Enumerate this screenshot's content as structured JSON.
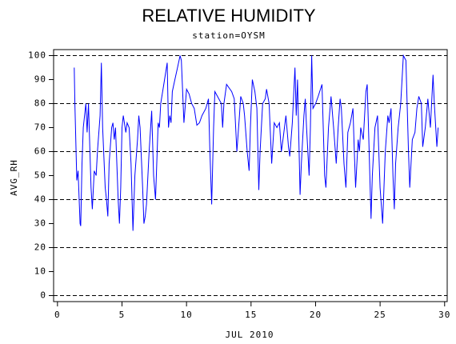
{
  "chart_data": {
    "type": "line",
    "title": "RELATIVE HUMIDITY",
    "subtitle": "station=OYSM",
    "xlabel": "JUL 2010",
    "ylabel": "AVG_RH",
    "x": [
      1.3,
      1.35,
      1.5,
      1.6,
      1.75,
      1.8,
      1.9,
      2.0,
      2.2,
      2.3,
      2.4,
      2.6,
      2.7,
      2.85,
      3.0,
      3.1,
      3.3,
      3.4,
      3.5,
      3.7,
      3.8,
      3.9,
      4.0,
      4.2,
      4.3,
      4.4,
      4.5,
      4.7,
      4.8,
      4.9,
      5.0,
      5.1,
      5.3,
      5.4,
      5.55,
      5.7,
      5.85,
      6.0,
      6.2,
      6.3,
      6.4,
      6.6,
      6.7,
      6.8,
      6.9,
      7.1,
      7.3,
      7.45,
      7.6,
      7.8,
      7.9,
      8.0,
      8.3,
      8.5,
      8.6,
      8.7,
      8.8,
      8.9,
      9.1,
      9.3,
      9.5,
      9.6,
      9.8,
      10.0,
      10.2,
      10.4,
      10.6,
      10.8,
      11.0,
      11.2,
      11.5,
      11.7,
      11.8,
      11.95,
      12.1,
      12.2,
      12.5,
      12.7,
      12.8,
      12.9,
      13.1,
      13.5,
      13.7,
      13.9,
      14.1,
      14.2,
      14.4,
      14.5,
      14.7,
      14.85,
      14.95,
      15.1,
      15.3,
      15.45,
      15.6,
      15.7,
      15.9,
      16.1,
      16.2,
      16.4,
      16.6,
      16.8,
      17.0,
      17.2,
      17.35,
      17.5,
      17.7,
      17.9,
      18.0,
      18.2,
      18.4,
      18.5,
      18.6,
      18.8,
      18.9,
      19.1,
      19.2,
      19.3,
      19.5,
      19.6,
      19.7,
      19.8,
      20.0,
      20.2,
      20.5,
      20.7,
      20.8,
      21.0,
      21.2,
      21.4,
      21.6,
      21.75,
      21.9,
      22.0,
      22.2,
      22.35,
      22.5,
      22.7,
      22.9,
      23.0,
      23.1,
      23.3,
      23.4,
      23.5,
      23.7,
      23.9,
      24.0,
      24.1,
      24.3,
      24.4,
      24.6,
      24.8,
      24.9,
      25.0,
      25.2,
      25.4,
      25.6,
      25.7,
      25.85,
      26.0,
      26.1,
      26.2,
      26.4,
      26.6,
      26.8,
      27.0,
      27.2,
      27.3,
      27.5,
      27.7,
      27.85,
      28.0,
      28.2,
      28.3,
      28.5,
      28.7,
      28.9,
      29.1,
      29.2,
      29.4,
      29.5
    ],
    "series": [
      {
        "name": "AVG_RH",
        "color": "#0000ff",
        "values": [
          95,
          80,
          48,
          52,
          30,
          29,
          55,
          70,
          80,
          68,
          80,
          45,
          36,
          52,
          50,
          60,
          75,
          97,
          70,
          45,
          40,
          33,
          55,
          70,
          72,
          65,
          70,
          40,
          30,
          45,
          70,
          75,
          68,
          72,
          70,
          55,
          27,
          50,
          65,
          75,
          70,
          45,
          30,
          33,
          38,
          60,
          77,
          50,
          40,
          72,
          70,
          80,
          90,
          97,
          70,
          75,
          72,
          85,
          90,
          95,
          100,
          98,
          72,
          86,
          84,
          80,
          78,
          71,
          72,
          75,
          78,
          82,
          62,
          38,
          70,
          85,
          82,
          80,
          70,
          80,
          88,
          85,
          82,
          60,
          75,
          83,
          80,
          75,
          60,
          52,
          70,
          90,
          85,
          78,
          44,
          60,
          80,
          82,
          86,
          80,
          55,
          72,
          70,
          72,
          60,
          66,
          75,
          62,
          58,
          72,
          95,
          75,
          90,
          42,
          55,
          75,
          82,
          70,
          50,
          70,
          100,
          78,
          80,
          83,
          88,
          50,
          45,
          70,
          83,
          70,
          55,
          70,
          82,
          78,
          55,
          45,
          68,
          72,
          78,
          60,
          45,
          65,
          60,
          70,
          65,
          85,
          88,
          70,
          32,
          50,
          70,
          75,
          60,
          45,
          30,
          60,
          75,
          72,
          78,
          50,
          36,
          55,
          70,
          80,
          100,
          98,
          60,
          45,
          65,
          68,
          78,
          83,
          80,
          62,
          70,
          82,
          70,
          92,
          80,
          62,
          70
        ]
      }
    ],
    "xlim": [
      -0.3,
      30.2
    ],
    "ylim": [
      -2.5,
      102.5
    ],
    "xticks": [
      0,
      5,
      10,
      15,
      20,
      25,
      30
    ],
    "yticks": [
      0,
      10,
      20,
      30,
      40,
      50,
      60,
      70,
      80,
      90,
      100
    ],
    "ygrid": [
      0,
      20,
      40,
      60,
      80,
      100
    ]
  }
}
